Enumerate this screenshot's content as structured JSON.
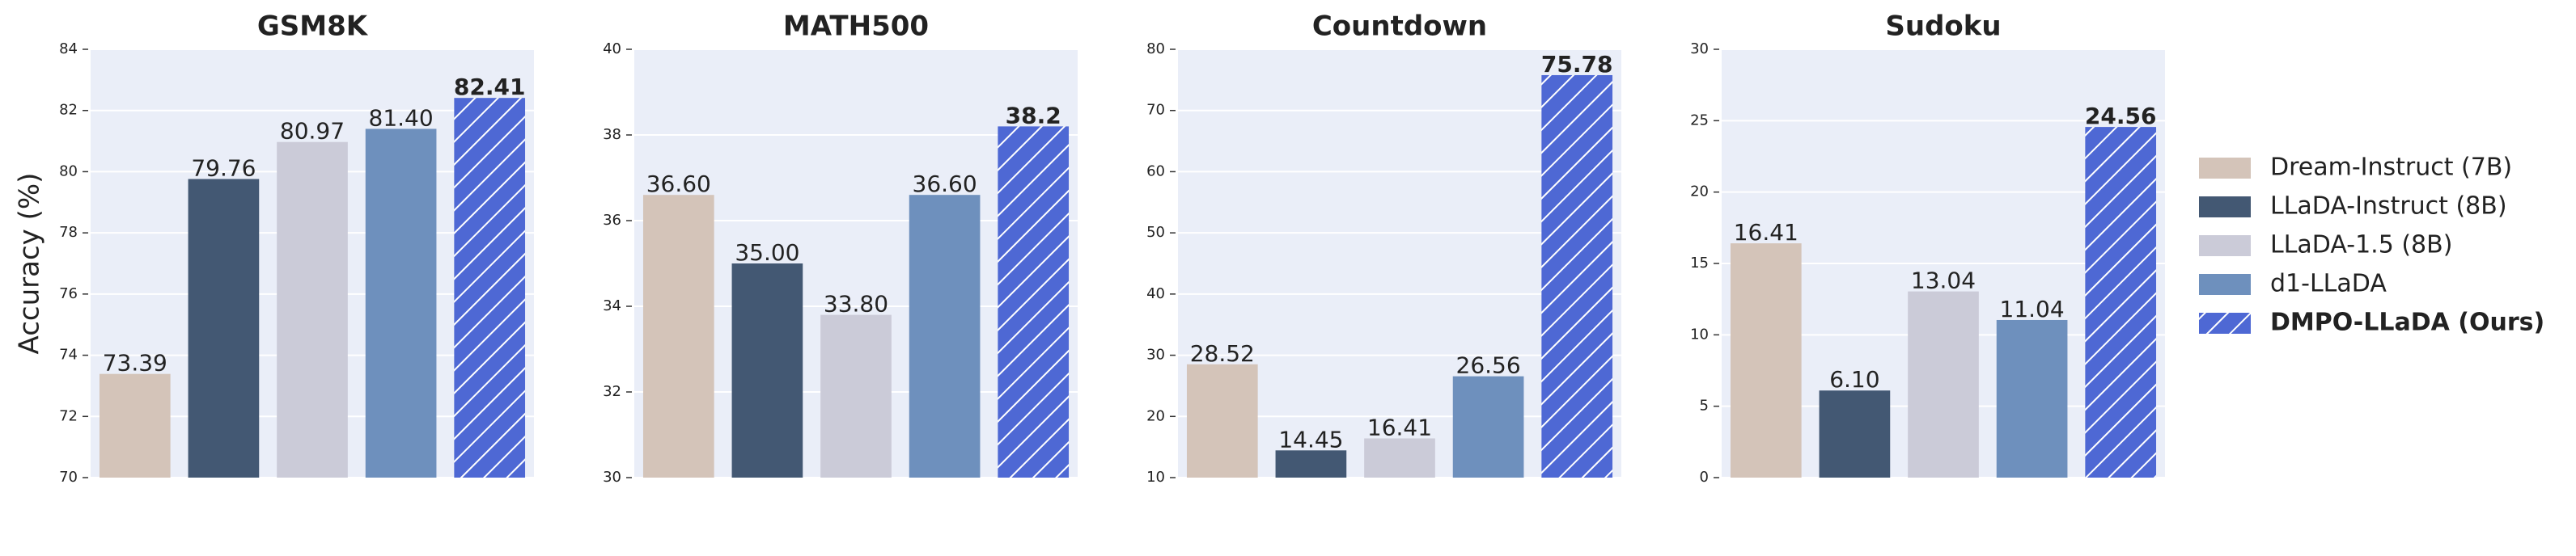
{
  "y_label": "Accuracy (%)",
  "legend": [
    {
      "name": "Dream-Instruct (7B)",
      "color": "#d4c4b9"
    },
    {
      "name": "LLaDA-Instruct (8B)",
      "color": "#435873"
    },
    {
      "name": "LLaDA-1.5 (8B)",
      "color": "#cbcbd8"
    },
    {
      "name": "d1-LLaDA",
      "color": "#6e90bd"
    },
    {
      "name": "DMPO-LLaDA (Ours)",
      "color": "#4e68d4",
      "hatch": true
    }
  ],
  "chart_data": [
    {
      "type": "bar",
      "title": "GSM8K",
      "values": [
        73.39,
        79.76,
        80.97,
        81.4,
        82.41
      ],
      "value_labels": [
        "73.39",
        "79.76",
        "80.97",
        "81.40",
        "82.41"
      ],
      "ylim": [
        70,
        84
      ],
      "yticks": [
        70,
        72,
        74,
        76,
        78,
        80,
        82,
        84
      ],
      "grid": true
    },
    {
      "type": "bar",
      "title": "MATH500",
      "values": [
        36.6,
        35.0,
        33.8,
        36.6,
        38.2
      ],
      "value_labels": [
        "36.60",
        "35.00",
        "33.80",
        "36.60",
        "38.2"
      ],
      "ylim": [
        30,
        40
      ],
      "yticks": [
        30,
        32,
        34,
        36,
        38,
        40
      ],
      "grid": true
    },
    {
      "type": "bar",
      "title": "Countdown",
      "values": [
        28.52,
        14.45,
        16.41,
        26.56,
        75.78
      ],
      "value_labels": [
        "28.52",
        "14.45",
        "16.41",
        "26.56",
        "75.78"
      ],
      "ylim": [
        10,
        80
      ],
      "yticks": [
        10,
        20,
        30,
        40,
        50,
        60,
        70,
        80
      ],
      "grid": true
    },
    {
      "type": "bar",
      "title": "Sudoku",
      "values": [
        16.41,
        6.1,
        13.04,
        11.04,
        24.56
      ],
      "value_labels": [
        "16.41",
        "6.10",
        "13.04",
        "11.04",
        "24.56"
      ],
      "ylim": [
        0,
        30
      ],
      "yticks": [
        0,
        5,
        10,
        15,
        20,
        25,
        30
      ],
      "grid": true
    }
  ]
}
